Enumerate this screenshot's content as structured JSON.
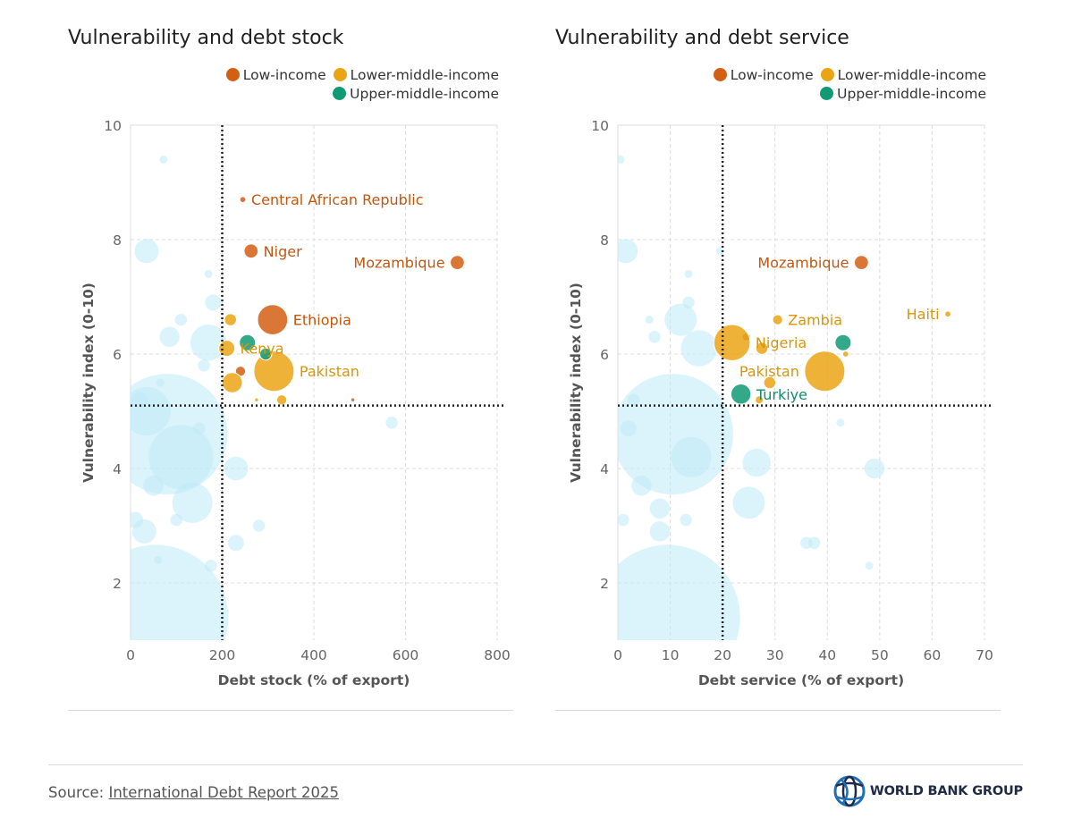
{
  "colors": {
    "low": "#d35f13",
    "lower_middle": "#eaa514",
    "upper_middle": "#0f9a74",
    "background_bubble": "#bdeaf7",
    "grid": "#dddddd",
    "threshold": "#222222"
  },
  "legend": {
    "low": "Low-income",
    "lower_middle": "Lower-middle-income",
    "upper_middle": "Upper-middle-income"
  },
  "footer": {
    "source_prefix": "Source: ",
    "source_link": "International Debt Report 2025",
    "logo_text": "WORLD BANK GROUP",
    "logo_icon": "globe-icon"
  },
  "chart_data": [
    {
      "type": "scatter",
      "title": "Vulnerability and debt stock",
      "xlabel": "Debt stock (% of export)",
      "ylabel": "Vulnerability index (0-10)",
      "xlim": [
        0,
        800
      ],
      "ylim": [
        1,
        10
      ],
      "xticks": [
        0,
        200,
        400,
        600,
        800
      ],
      "yticks": [
        2,
        4,
        6,
        8,
        10
      ],
      "threshold_x": 200,
      "threshold_y": 5.1,
      "series": [
        {
          "name": "Other countries",
          "group": "background",
          "points": [
            {
              "x": 55,
              "y": 1.4,
              "size": 36
            },
            {
              "x": 80,
              "y": 4.6,
              "size": 30
            },
            {
              "x": 110,
              "y": 4.2,
              "size": 16
            },
            {
              "x": 35,
              "y": 5.0,
              "size": 12
            },
            {
              "x": 135,
              "y": 3.4,
              "size": 10
            },
            {
              "x": 170,
              "y": 6.2,
              "size": 9
            },
            {
              "x": 35,
              "y": 7.8,
              "size": 6
            },
            {
              "x": 230,
              "y": 4.0,
              "size": 6
            },
            {
              "x": 30,
              "y": 2.9,
              "size": 6
            },
            {
              "x": 50,
              "y": 3.7,
              "size": 5
            },
            {
              "x": 85,
              "y": 6.3,
              "size": 5
            },
            {
              "x": 180,
              "y": 6.9,
              "size": 4
            },
            {
              "x": 10,
              "y": 3.1,
              "size": 4
            },
            {
              "x": 20,
              "y": 5.2,
              "size": 4
            },
            {
              "x": 230,
              "y": 2.7,
              "size": 4
            },
            {
              "x": 175,
              "y": 2.3,
              "size": 3
            },
            {
              "x": 160,
              "y": 5.8,
              "size": 3
            },
            {
              "x": 110,
              "y": 6.6,
              "size": 3
            },
            {
              "x": 100,
              "y": 3.1,
              "size": 3
            },
            {
              "x": 280,
              "y": 3.0,
              "size": 3
            },
            {
              "x": 570,
              "y": 4.8,
              "size": 3
            },
            {
              "x": 72,
              "y": 9.4,
              "size": 2
            },
            {
              "x": 150,
              "y": 4.7,
              "size": 3
            },
            {
              "x": 65,
              "y": 5.5,
              "size": 2
            },
            {
              "x": 170,
              "y": 7.4,
              "size": 2
            },
            {
              "x": 60,
              "y": 2.4,
              "size": 2
            }
          ]
        },
        {
          "name": "Low-income",
          "group": "low",
          "points": [
            {
              "x": 245,
              "y": 8.7,
              "size": 1.5,
              "label": "Central African Republic"
            },
            {
              "x": 263,
              "y": 7.8,
              "size": 3.5,
              "label": "Niger"
            },
            {
              "x": 713,
              "y": 7.6,
              "size": 3.5,
              "label": "Mozambique"
            },
            {
              "x": 310,
              "y": 6.6,
              "size": 7.5,
              "label": "Ethiopia"
            },
            {
              "x": 240,
              "y": 5.7,
              "size": 2.5
            },
            {
              "x": 485,
              "y": 5.2,
              "size": 1
            }
          ]
        },
        {
          "name": "Lower-middle-income",
          "group": "lower_middle",
          "points": [
            {
              "x": 313,
              "y": 5.7,
              "size": 10,
              "label": "Pakistan"
            },
            {
              "x": 210,
              "y": 6.1,
              "size": 4,
              "label": "Kenya"
            },
            {
              "x": 218,
              "y": 6.6,
              "size": 3
            },
            {
              "x": 222,
              "y": 5.5,
              "size": 5
            },
            {
              "x": 330,
              "y": 5.2,
              "size": 2.5
            },
            {
              "x": 275,
              "y": 5.2,
              "size": 1
            }
          ]
        },
        {
          "name": "Upper-middle-income",
          "group": "upper_middle",
          "points": [
            {
              "x": 255,
              "y": 6.2,
              "size": 4
            },
            {
              "x": 295,
              "y": 6.0,
              "size": 3
            }
          ]
        }
      ]
    },
    {
      "type": "scatter",
      "title": "Vulnerability and debt service",
      "xlabel": "Debt service (% of export)",
      "ylabel": "Vulnerability index (0-10)",
      "xlim": [
        0,
        70
      ],
      "ylim": [
        1,
        10
      ],
      "xticks": [
        0,
        10,
        20,
        30,
        40,
        50,
        60,
        70
      ],
      "yticks": [
        2,
        4,
        6,
        8,
        10
      ],
      "threshold_x": 20,
      "threshold_y": 5.1,
      "series": [
        {
          "name": "Other countries",
          "group": "background",
          "points": [
            {
              "x": 9.5,
              "y": 1.4,
              "size": 36
            },
            {
              "x": 10.5,
              "y": 4.6,
              "size": 30
            },
            {
              "x": 14,
              "y": 4.2,
              "size": 10
            },
            {
              "x": 15.5,
              "y": 6.1,
              "size": 9
            },
            {
              "x": 12,
              "y": 6.6,
              "size": 8
            },
            {
              "x": 25,
              "y": 3.4,
              "size": 8
            },
            {
              "x": 26.5,
              "y": 4.1,
              "size": 7
            },
            {
              "x": 49,
              "y": 4.0,
              "size": 5
            },
            {
              "x": 1.5,
              "y": 7.8,
              "size": 6
            },
            {
              "x": 8,
              "y": 3.3,
              "size": 5
            },
            {
              "x": 4.5,
              "y": 3.7,
              "size": 5
            },
            {
              "x": 8,
              "y": 2.9,
              "size": 5
            },
            {
              "x": 37.5,
              "y": 2.7,
              "size": 3
            },
            {
              "x": 36,
              "y": 2.7,
              "size": 3
            },
            {
              "x": 2,
              "y": 4.7,
              "size": 4
            },
            {
              "x": 1,
              "y": 3.1,
              "size": 3
            },
            {
              "x": 13.5,
              "y": 6.9,
              "size": 3
            },
            {
              "x": 7,
              "y": 6.3,
              "size": 3
            },
            {
              "x": 13,
              "y": 3.1,
              "size": 3
            },
            {
              "x": 48,
              "y": 2.3,
              "size": 2
            },
            {
              "x": 42.5,
              "y": 4.8,
              "size": 2
            },
            {
              "x": 0.5,
              "y": 9.4,
              "size": 2
            },
            {
              "x": 6,
              "y": 6.6,
              "size": 2
            },
            {
              "x": 19.5,
              "y": 7.8,
              "size": 2
            },
            {
              "x": 3,
              "y": 5.2,
              "size": 3
            },
            {
              "x": 13.5,
              "y": 7.4,
              "size": 2
            }
          ]
        },
        {
          "name": "Low-income",
          "group": "low",
          "points": [
            {
              "x": 46.5,
              "y": 7.6,
              "size": 3.5,
              "label": "Mozambique"
            },
            {
              "x": 24.5,
              "y": 6.3,
              "size": 2
            }
          ]
        },
        {
          "name": "Lower-middle-income",
          "group": "lower_middle",
          "points": [
            {
              "x": 63,
              "y": 6.7,
              "size": 1.5,
              "label": "Haiti"
            },
            {
              "x": 30.5,
              "y": 6.6,
              "size": 2.5,
              "label": "Zambia"
            },
            {
              "x": 21.8,
              "y": 6.2,
              "size": 9,
              "label": "Nigeria"
            },
            {
              "x": 39.5,
              "y": 5.7,
              "size": 10,
              "label": "Pakistan"
            },
            {
              "x": 27.5,
              "y": 6.1,
              "size": 3
            },
            {
              "x": 29,
              "y": 5.5,
              "size": 3
            },
            {
              "x": 43.5,
              "y": 6.0,
              "size": 1.5
            },
            {
              "x": 27,
              "y": 5.2,
              "size": 2
            }
          ]
        },
        {
          "name": "Upper-middle-income",
          "group": "upper_middle",
          "points": [
            {
              "x": 23.5,
              "y": 5.3,
              "size": 5,
              "label": "Turkiye"
            },
            {
              "x": 43,
              "y": 6.2,
              "size": 4
            }
          ]
        }
      ]
    }
  ]
}
